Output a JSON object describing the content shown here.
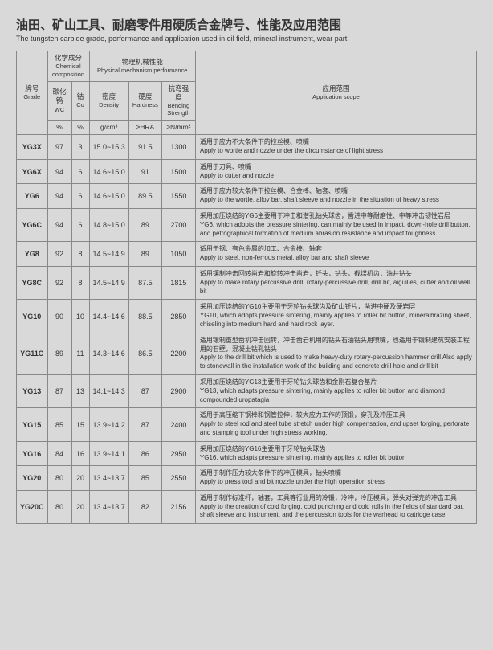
{
  "title_cn": "油田、矿山工具、耐磨零件用硬质合金牌号、性能及应用范围",
  "title_en": "The tungsten carbide grade, performance and application used in oil field, mineral instrument, wear part",
  "headers": {
    "grade_cn": "牌号",
    "grade_en": "Grade",
    "chem_cn": "化学成分",
    "chem_en": "Chemical composition",
    "phys_cn": "物理机械性能",
    "phys_en": "Physical mechanism performance",
    "wc_cn": "碳化钨",
    "wc_en": "WC",
    "co_cn": "钴",
    "co_en": "Co",
    "density_cn": "密度",
    "density_en": "Density",
    "hardness_cn": "硬度",
    "hardness_en": "Hardness",
    "bend_cn": "抗弯强度",
    "bend_en": "Bending Strength",
    "scope_cn": "应用范围",
    "scope_en": "Application scope",
    "pct": "%",
    "gcm": "g/cm³",
    "hra": "≥HRA",
    "nmm": "≥N/mm²"
  },
  "rows": [
    {
      "grade": "YG3X",
      "wc": "97",
      "co": "3",
      "density": "15.0~15.3",
      "hardness": "91.5",
      "bend": "1300",
      "scope": "适用于应力不大条件下的拉丝模、喷嘴\nApply to wortle and nozzle under the circumstance of light stress"
    },
    {
      "grade": "YG6X",
      "wc": "94",
      "co": "6",
      "density": "14.6~15.0",
      "hardness": "91",
      "bend": "1500",
      "scope": "适用于刀具、喷嘴\nApply to cutter and nozzle"
    },
    {
      "grade": "YG6",
      "wc": "94",
      "co": "6",
      "density": "14.6~15.0",
      "hardness": "89.5",
      "bend": "1550",
      "scope": "适用于应力较大条件下拉丝模、合金棒、轴套、喷嘴\nApply to the wortle, alloy bar, shaft sleeve and nozzle in the situation of heavy stress"
    },
    {
      "grade": "YG6C",
      "wc": "94",
      "co": "6",
      "density": "14.8~15.0",
      "hardness": "89",
      "bend": "2700",
      "scope": "采用加压烧结的YG6主要用于冲击和潜孔钻头球齿，凿进中等耐磨性、中等冲击韧性岩层\nYG6, which adopts the pressure sintering, can mainly be used in impact, down-hole drill button, and petrographical formation of medium abrasion resistance and impact toughness."
    },
    {
      "grade": "YG8",
      "wc": "92",
      "co": "8",
      "density": "14.5~14.9",
      "hardness": "89",
      "bend": "1050",
      "scope": "适用于钢、有色金属的加工、合金棒、轴套\nApply to steel, non-ferrous metal, alloy bar and shaft sleeve"
    },
    {
      "grade": "YG8C",
      "wc": "92",
      "co": "8",
      "density": "14.5~14.9",
      "hardness": "87.5",
      "bend": "1815",
      "scope": "适用镶制冲击回转凿岩和旋转冲击凿岩，钎头，钻头，截煤机齿，油井钻头\nApply to make rotary percussive drill, rotary-percussive drill, drill bit, aiguilles, cutter and oil well bit"
    },
    {
      "grade": "YG10",
      "wc": "90",
      "co": "10",
      "density": "14.4~14.6",
      "hardness": "88.5",
      "bend": "2850",
      "scope": "采用加压烧结的YG10主要用于牙轮钻头球齿及矿山钎片，凿进中硬及硬岩层\nYG10, which adopts pressure sintering, mainly applies to roller bit button, mineralbrazing sheet, chiseling into medium hard and hard rock layer."
    },
    {
      "grade": "YG11C",
      "wc": "89",
      "co": "11",
      "density": "14.3~14.6",
      "hardness": "86.5",
      "bend": "2200",
      "scope": "适用镶制重型凿机冲击回转，冲击凿岩机用的钻头石油钻头用喷嘴，也适用于镶制建筑安装工程用的石壁，混凝土钻孔钻头\nApply to the drill bit which is used to make heavy-duty rotary-percussion hammer drill Also apply to stonewall in the installation work of the building and concrete drill hole and drill bit"
    },
    {
      "grade": "YG13",
      "wc": "87",
      "co": "13",
      "density": "14.1~14.3",
      "hardness": "87",
      "bend": "2900",
      "scope": "采用加压烧结的YG13主要用于牙轮钻头球齿和金刚石复合基片\nYG13, which adapts pressure sintering, mainly applies to roller bit button and diamond compounded uropatagia"
    },
    {
      "grade": "YG15",
      "wc": "85",
      "co": "15",
      "density": "13.9~14.2",
      "hardness": "87",
      "bend": "2400",
      "scope": "适用于高压缩下钢棒和钢管拉伸，较大应力工作的顶锻，穿孔及冲压工具\nApply to steel rod and steel tube stretch under high compensation, and upset forging, perforate and stamping tool under high stress working."
    },
    {
      "grade": "YG16",
      "wc": "84",
      "co": "16",
      "density": "13.9~14.1",
      "hardness": "86",
      "bend": "2950",
      "scope": "采用加压烧结的YG16主要用于牙轮钻头球齿\nYG16, which adapts pressure sintering, mainly applies to roller bit button"
    },
    {
      "grade": "YG20",
      "wc": "80",
      "co": "20",
      "density": "13.4~13.7",
      "hardness": "85",
      "bend": "2550",
      "scope": "适用于制作压力较大条件下的冲压模具，钻头喷嘴\nApply to press tool and bit nozzle under the high operation stress"
    },
    {
      "grade": "YG20C",
      "wc": "80",
      "co": "20",
      "density": "13.4~13.7",
      "hardness": "82",
      "bend": "2156",
      "scope": "适用于制作标准杆，轴套，工具等行业用的冷锻，冷冲，冷压模具，弹头对弹壳的冲击工具\nApply to the creation of cold forging, cold punching and cold rolls in the fields of standard bar, shaft sleeve and instrument, and the percussion tools for the warhead to catridge case"
    }
  ]
}
